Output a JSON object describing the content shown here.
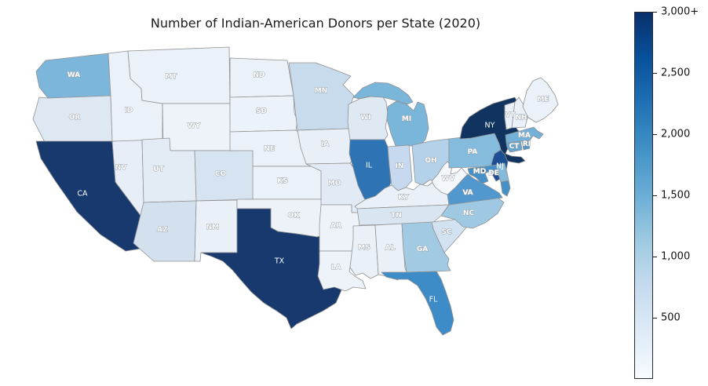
{
  "title": "Number of Indian-American Donors per State (2020)",
  "chart_data": {
    "type": "choropleth",
    "title": "Number of Indian-American Donors per State (2020)",
    "region": "United States (contiguous states)",
    "legend_position": "right-vertical-colorbar",
    "colorbar": {
      "ticks": [
        "3,000+",
        "2,500",
        "2,000",
        "1,500",
        "1,000",
        "500"
      ],
      "range": [
        0,
        3000
      ],
      "gradient_top_to_bottom": [
        "#08306b",
        "#08519c",
        "#2171b5",
        "#4292c6",
        "#6baed6",
        "#9ecae1",
        "#c6dbef",
        "#deebf7",
        "#f7fbff"
      ]
    },
    "states": [
      {
        "abbr": "WA",
        "fill": "#7cb6da",
        "value_approx": 1400,
        "label_style": "outline"
      },
      {
        "abbr": "OR",
        "fill": "#dde8f3",
        "value_approx": 350,
        "label_style": "outline"
      },
      {
        "abbr": "CA",
        "fill": "#17396d",
        "value_approx": 3000,
        "label_style": "solid"
      },
      {
        "abbr": "NV",
        "fill": "#e7eef7",
        "value_approx": 250,
        "label_style": "outline"
      },
      {
        "abbr": "ID",
        "fill": "#ebf1f8",
        "value_approx": 200,
        "label_style": "outline"
      },
      {
        "abbr": "MT",
        "fill": "#ebf1f8",
        "value_approx": 200,
        "label_style": "outline"
      },
      {
        "abbr": "WY",
        "fill": "#edf3f9",
        "value_approx": 150,
        "label_style": "outline"
      },
      {
        "abbr": "UT",
        "fill": "#e3ecf5",
        "value_approx": 300,
        "label_style": "outline"
      },
      {
        "abbr": "CO",
        "fill": "#d6e3f0",
        "value_approx": 450,
        "label_style": "outline"
      },
      {
        "abbr": "AZ",
        "fill": "#d3e1ef",
        "value_approx": 450,
        "label_style": "outline"
      },
      {
        "abbr": "NM",
        "fill": "#e9f0f7",
        "value_approx": 250,
        "label_style": "outline"
      },
      {
        "abbr": "ND",
        "fill": "#eaf1f8",
        "value_approx": 250,
        "label_style": "outline"
      },
      {
        "abbr": "SD",
        "fill": "#ecf2f9",
        "value_approx": 200,
        "label_style": "outline"
      },
      {
        "abbr": "NE",
        "fill": "#eaf1f8",
        "value_approx": 250,
        "label_style": "outline"
      },
      {
        "abbr": "KS",
        "fill": "#eaf1f8",
        "value_approx": 250,
        "label_style": "outline"
      },
      {
        "abbr": "OK",
        "fill": "#edf2f9",
        "value_approx": 200,
        "label_style": "outline"
      },
      {
        "abbr": "TX",
        "fill": "#17396d",
        "value_approx": 3000,
        "label_style": "solid"
      },
      {
        "abbr": "MN",
        "fill": "#c8dbec",
        "value_approx": 600,
        "label_style": "outline"
      },
      {
        "abbr": "IA",
        "fill": "#e8eff7",
        "value_approx": 250,
        "label_style": "outline"
      },
      {
        "abbr": "MO",
        "fill": "#e2ebf5",
        "value_approx": 300,
        "label_style": "outline"
      },
      {
        "abbr": "AR",
        "fill": "#eef3fa",
        "value_approx": 200,
        "label_style": "outline"
      },
      {
        "abbr": "LA",
        "fill": "#eef3fa",
        "value_approx": 200,
        "label_style": "outline"
      },
      {
        "abbr": "WI",
        "fill": "#dfe9f4",
        "value_approx": 350,
        "label_style": "outline"
      },
      {
        "abbr": "MI",
        "fill": "#7ab5da",
        "value_approx": 1400,
        "label_style": "outline"
      },
      {
        "abbr": "IL",
        "fill": "#2e74b5",
        "value_approx": 2100,
        "label_style": "solid"
      },
      {
        "abbr": "IN",
        "fill": "#c7d9ee",
        "value_approx": 600,
        "label_style": "outline"
      },
      {
        "abbr": "OH",
        "fill": "#b3d1e8",
        "value_approx": 800,
        "label_style": "outline"
      },
      {
        "abbr": "KY",
        "fill": "#e9f0f8",
        "value_approx": 250,
        "label_style": "outline"
      },
      {
        "abbr": "TN",
        "fill": "#d9e6f2",
        "value_approx": 400,
        "label_style": "outline"
      },
      {
        "abbr": "MS",
        "fill": "#e9f0f8",
        "value_approx": 250,
        "label_style": "outline"
      },
      {
        "abbr": "AL",
        "fill": "#e9f0f8",
        "value_approx": 250,
        "label_style": "outline"
      },
      {
        "abbr": "GA",
        "fill": "#a3cae3",
        "value_approx": 950,
        "label_style": "outline"
      },
      {
        "abbr": "SC",
        "fill": "#d2e2f0",
        "value_approx": 450,
        "label_style": "outline"
      },
      {
        "abbr": "NC",
        "fill": "#9fc8e2",
        "value_approx": 1000,
        "label_style": "outline"
      },
      {
        "abbr": "FL",
        "fill": "#3d8cc7",
        "value_approx": 1800,
        "label_style": "solid"
      },
      {
        "abbr": "VA",
        "fill": "#5098cd",
        "value_approx": 1650,
        "label_style": "outline"
      },
      {
        "abbr": "WV",
        "fill": "#f4f8fc",
        "value_approx": 100,
        "label_style": "outline"
      },
      {
        "abbr": "PA",
        "fill": "#85bbdc",
        "value_approx": 1350,
        "label_style": "outline"
      },
      {
        "abbr": "NY",
        "fill": "#10335f",
        "value_approx": 3000,
        "label_style": "solid"
      },
      {
        "abbr": "NJ",
        "fill": "#1c4e93",
        "value_approx": 2600,
        "label_style": "solid"
      },
      {
        "abbr": "MD",
        "fill": "#4690c8",
        "value_approx": 1800,
        "label_style": "outline"
      },
      {
        "abbr": "DE",
        "fill": "#85badb",
        "value_approx": 1350,
        "label_style": "outline"
      },
      {
        "abbr": "CT",
        "fill": "#64a6d2",
        "value_approx": 1550,
        "label_style": "outline"
      },
      {
        "abbr": "RI",
        "fill": "#4f97cc",
        "value_approx": 1650,
        "label_style": "outline"
      },
      {
        "abbr": "MA",
        "fill": "#74b1d8",
        "value_approx": 1450,
        "label_style": "outline"
      },
      {
        "abbr": "VT",
        "fill": "#e9f0f8",
        "value_approx": 250,
        "label_style": "outline"
      },
      {
        "abbr": "NH",
        "fill": "#e9f0f8",
        "value_approx": 250,
        "label_style": "outline"
      },
      {
        "abbr": "ME",
        "fill": "#eaf1f8",
        "value_approx": 250,
        "label_style": "outline"
      },
      {
        "abbr": "DC",
        "fill": "#08306b",
        "value_approx": 3000,
        "label_style": "none"
      }
    ]
  }
}
